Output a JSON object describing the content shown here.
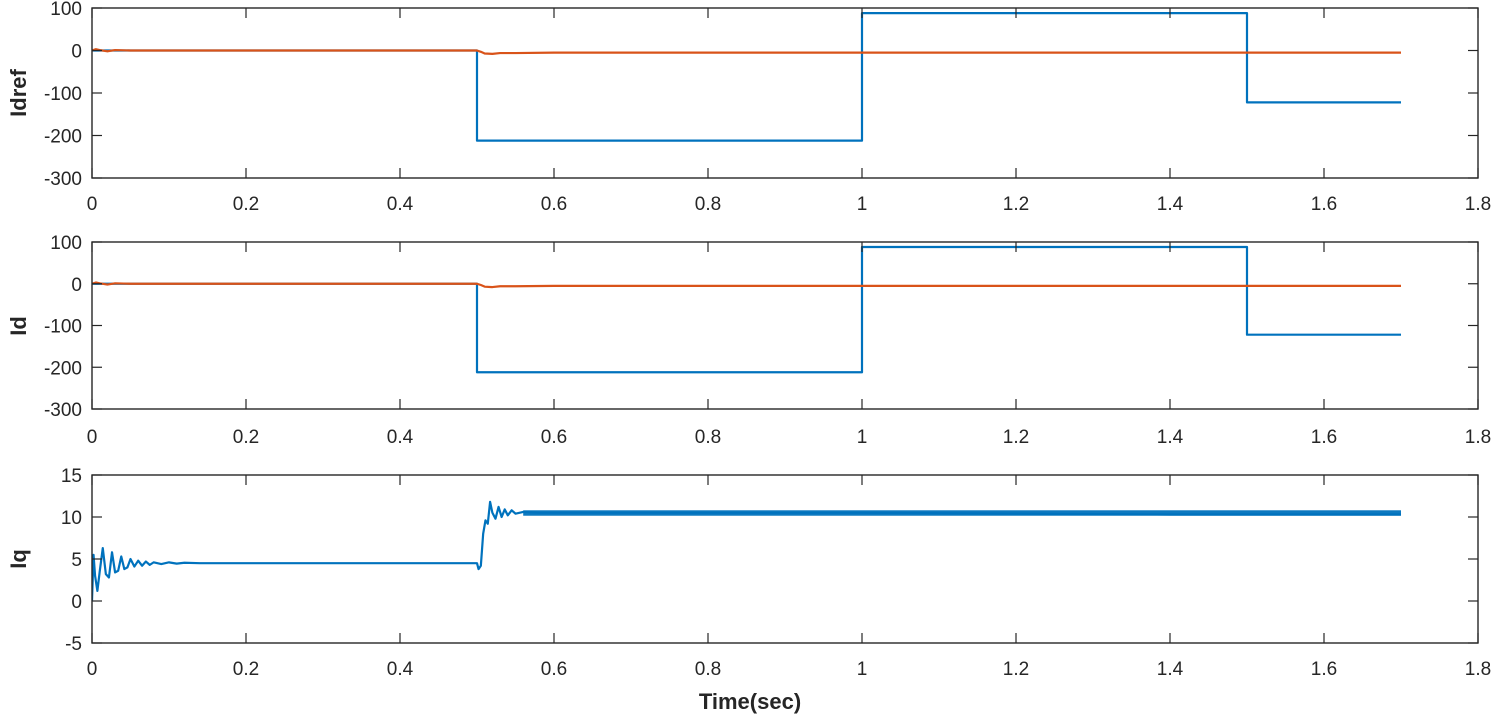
{
  "chart_data": [
    {
      "type": "line",
      "ylabel": "Idref",
      "xlim": [
        0,
        1.8
      ],
      "ylim": [
        -300,
        100
      ],
      "xticks": [
        0,
        0.2,
        0.4,
        0.6,
        0.8,
        1,
        1.2,
        1.4,
        1.6,
        1.8
      ],
      "yticks": [
        -300,
        -200,
        -100,
        0,
        100
      ],
      "xtick_labels": [
        "0",
        "0.2",
        "0.4",
        "0.6",
        "0.8",
        "1",
        "1.2",
        "1.4",
        "1.6",
        "1.8"
      ],
      "ytick_labels": [
        "-300",
        "-200",
        "-100",
        "0",
        "100"
      ],
      "grid": false,
      "series": [
        {
          "color": "#0072BD",
          "x": [
            0,
            0.5,
            0.5,
            1.0,
            1.0,
            1.5,
            1.5,
            1.7
          ],
          "y": [
            0,
            0,
            -212,
            -212,
            88,
            88,
            -122,
            -122
          ]
        },
        {
          "color": "#D95319",
          "x": [
            0,
            0.005,
            0.01,
            0.02,
            0.03,
            0.05,
            0.5,
            0.505,
            0.51,
            0.52,
            0.53,
            0.55,
            0.6,
            1.0,
            1.5,
            1.7
          ],
          "y": [
            0,
            3,
            1,
            -2,
            1,
            0,
            0,
            -3,
            -7,
            -8,
            -6,
            -6,
            -5,
            -5,
            -5,
            -5
          ]
        }
      ]
    },
    {
      "type": "line",
      "ylabel": "Id",
      "xlim": [
        0,
        1.8
      ],
      "ylim": [
        -300,
        100
      ],
      "xticks": [
        0,
        0.2,
        0.4,
        0.6,
        0.8,
        1,
        1.2,
        1.4,
        1.6,
        1.8
      ],
      "yticks": [
        -300,
        -200,
        -100,
        0,
        100
      ],
      "xtick_labels": [
        "0",
        "0.2",
        "0.4",
        "0.6",
        "0.8",
        "1",
        "1.2",
        "1.4",
        "1.6",
        "1.8"
      ],
      "ytick_labels": [
        "-300",
        "-200",
        "-100",
        "0",
        "100"
      ],
      "grid": false,
      "series": [
        {
          "color": "#0072BD",
          "x": [
            0,
            0.5,
            0.5,
            1.0,
            1.0,
            1.5,
            1.5,
            1.7
          ],
          "y": [
            0,
            0,
            -212,
            -212,
            88,
            88,
            -122,
            -122
          ]
        },
        {
          "color": "#D95319",
          "x": [
            0,
            0.005,
            0.01,
            0.02,
            0.03,
            0.05,
            0.5,
            0.505,
            0.51,
            0.52,
            0.53,
            0.55,
            0.6,
            1.0,
            1.5,
            1.7
          ],
          "y": [
            0,
            3,
            1,
            -2,
            1,
            0,
            0,
            -3,
            -7,
            -8,
            -6,
            -6,
            -5,
            -5,
            -5,
            -5
          ]
        }
      ]
    },
    {
      "type": "line",
      "ylabel": "Iq",
      "xlabel": "Time(sec)",
      "xlim": [
        0,
        1.8
      ],
      "ylim": [
        -5,
        15
      ],
      "xticks": [
        0,
        0.2,
        0.4,
        0.6,
        0.8,
        1,
        1.2,
        1.4,
        1.6,
        1.8
      ],
      "yticks": [
        -5,
        0,
        5,
        10,
        15
      ],
      "xtick_labels": [
        "0",
        "0.2",
        "0.4",
        "0.6",
        "0.8",
        "1",
        "1.2",
        "1.4",
        "1.6",
        "1.8"
      ],
      "ytick_labels": [
        "-5",
        "0",
        "5",
        "10",
        "15"
      ],
      "grid": false,
      "series": [
        {
          "color": "#0072BD",
          "x": [
            0,
            0.002,
            0.004,
            0.007,
            0.01,
            0.014,
            0.018,
            0.022,
            0.026,
            0.03,
            0.034,
            0.038,
            0.042,
            0.046,
            0.05,
            0.055,
            0.06,
            0.065,
            0.07,
            0.075,
            0.08,
            0.09,
            0.1,
            0.11,
            0.12,
            0.14,
            0.16,
            0.2,
            0.3,
            0.4,
            0.5,
            0.502,
            0.505,
            0.508,
            0.511,
            0.514,
            0.517,
            0.52,
            0.524,
            0.528,
            0.532,
            0.536,
            0.54,
            0.545,
            0.55,
            0.56,
            0.58,
            0.6,
            0.8,
            1.0,
            1.2,
            1.4,
            1.6,
            1.7
          ],
          "y": [
            0,
            5.5,
            3,
            1.2,
            3.5,
            6.3,
            3.2,
            2.8,
            5.8,
            3.4,
            3.6,
            5.3,
            3.8,
            4,
            5,
            4.1,
            4.8,
            4.2,
            4.7,
            4.3,
            4.6,
            4.4,
            4.6,
            4.45,
            4.55,
            4.5,
            4.5,
            4.5,
            4.5,
            4.5,
            4.5,
            3.8,
            4.2,
            8,
            9.6,
            9.2,
            11.8,
            10.5,
            9.8,
            11.2,
            10,
            10.9,
            10.2,
            10.8,
            10.4,
            10.6,
            10.5,
            10.5,
            10.5,
            10.5,
            10.4,
            10.3,
            10.3,
            10.3
          ]
        }
      ]
    }
  ]
}
